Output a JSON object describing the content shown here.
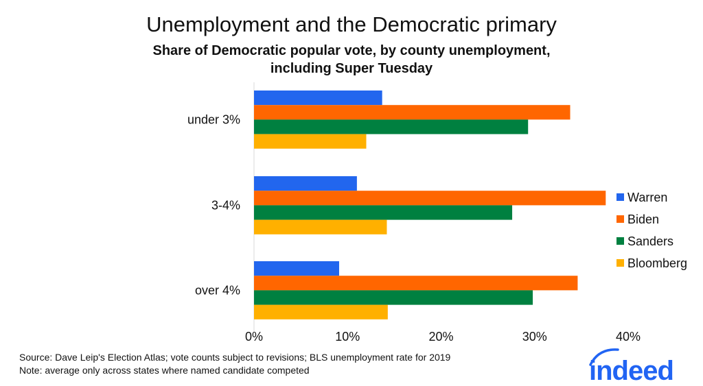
{
  "chart_data": {
    "type": "bar",
    "orientation": "horizontal",
    "title": "Unemployment and the Democratic primary",
    "subtitle_lines": [
      "Share of Democratic popular vote, by county unemployment,",
      "including Super Tuesday"
    ],
    "categories": [
      "under 3%",
      "3-4%",
      "over 4%"
    ],
    "series": [
      {
        "name": "Warren",
        "color": "#2266ee",
        "values": [
          13.7,
          11.0,
          9.1
        ]
      },
      {
        "name": "Biden",
        "color": "#ff6600",
        "values": [
          33.8,
          37.6,
          34.6
        ]
      },
      {
        "name": "Sanders",
        "color": "#008040",
        "values": [
          29.3,
          27.6,
          29.8
        ]
      },
      {
        "name": "Bloomberg",
        "color": "#ffb000",
        "values": [
          12.0,
          14.2,
          14.3
        ]
      }
    ],
    "xlim": [
      0,
      40
    ],
    "xticks": [
      "0%",
      "10%",
      "20%",
      "30%",
      "40%"
    ],
    "xtick_values": [
      0,
      10,
      20,
      30,
      40
    ],
    "grid": false,
    "legend_position": "right",
    "notes": [
      "Source: Dave Leip's Election Atlas; vote counts subject to revisions; BLS unemployment rate for 2019",
      "Note: average only across states where named candidate competed"
    ],
    "logo": {
      "text": "indeed",
      "color": "#2164f3"
    }
  }
}
